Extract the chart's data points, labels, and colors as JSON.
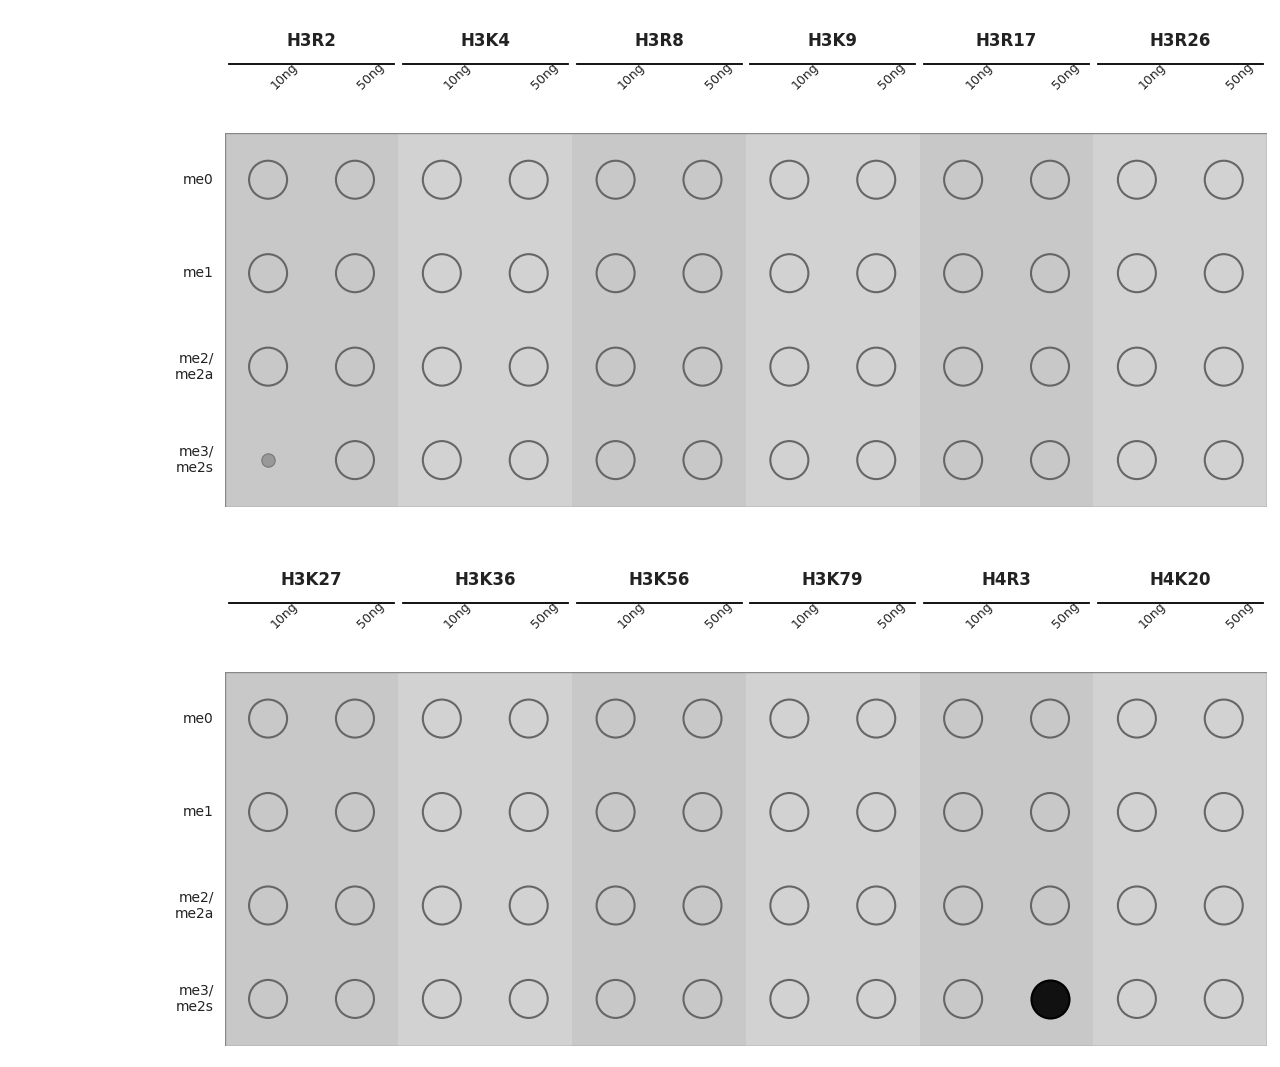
{
  "panel1_groups": [
    "H3R2",
    "H3K4",
    "H3R8",
    "H3K9",
    "H3R17",
    "H3R26"
  ],
  "panel2_groups": [
    "H3K27",
    "H3K36",
    "H3K56",
    "H3K79",
    "H4R3",
    "H4K20"
  ],
  "row_labels": [
    "me0",
    "me1",
    "me2/\nme2a",
    "me3/\nme2s"
  ],
  "col_sublabels": [
    "10ng",
    "50ng"
  ],
  "panel_bg_even": "#c8c8c8",
  "panel_bg_odd": "#d2d2d2",
  "dot_edge_color": "#666666",
  "dot_fill_color": "#111111",
  "text_color": "#222222",
  "group_header_fontsize": 12,
  "sublabel_fontsize": 9,
  "rowlabel_fontsize": 10,
  "dot_linewidth": 1.5,
  "panel1_filled": [],
  "panel1_artifact": [
    [
      0,
      3,
      0
    ]
  ],
  "panel2_filled": [
    [
      4,
      3,
      1
    ]
  ],
  "panel2_artifact": []
}
